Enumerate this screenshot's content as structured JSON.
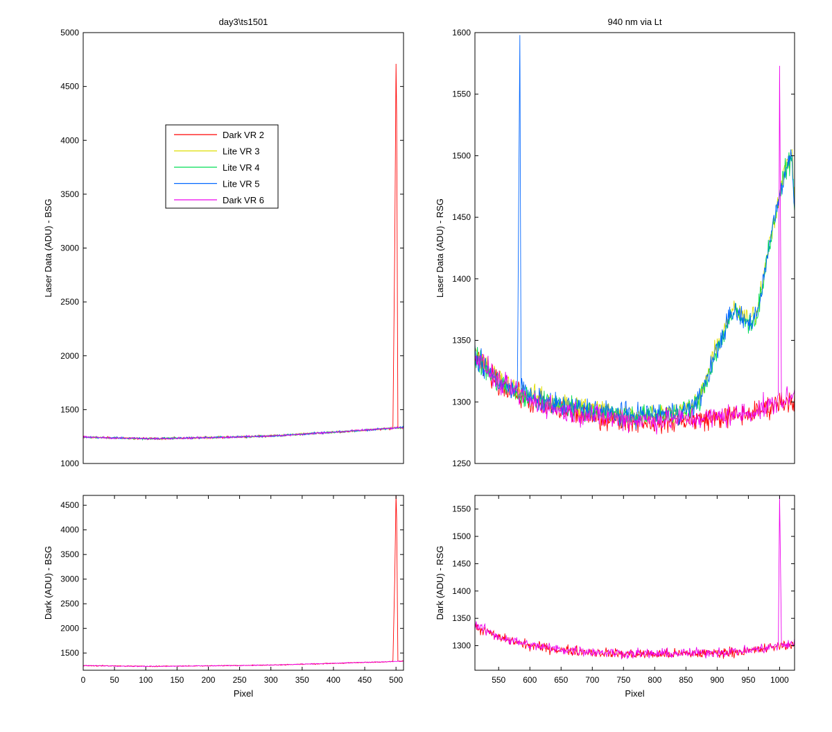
{
  "figure": {
    "background": "#ffffff",
    "panels": [
      {
        "id": "top-left",
        "title": "day3\\ts1501",
        "xlabel": "",
        "ylabel": "Laser Data (ADU) - BSG",
        "xlim": [
          0,
          512
        ],
        "ylim": [
          1000,
          5000
        ],
        "xticks": [],
        "yticks": [
          1000,
          1500,
          2000,
          2500,
          3000,
          3500,
          4000,
          4500,
          5000
        ]
      },
      {
        "id": "top-right",
        "title": "940 nm via Lt",
        "xlabel": "",
        "ylabel": "Laser Data (ADU) - RSG",
        "xlim": [
          512,
          1024
        ],
        "ylim": [
          1250,
          1600
        ],
        "xticks": [],
        "yticks": [
          1250,
          1300,
          1350,
          1400,
          1450,
          1500,
          1550,
          1600
        ]
      },
      {
        "id": "bottom-left",
        "title": "",
        "xlabel": "Pixel",
        "ylabel": "Dark (ADU) - BSG",
        "xlim": [
          0,
          512
        ],
        "ylim": [
          1150,
          4700
        ],
        "xticks": [
          0,
          50,
          100,
          150,
          200,
          250,
          300,
          350,
          400,
          450,
          500
        ],
        "yticks": [
          1500,
          2000,
          2500,
          3000,
          3500,
          4000,
          4500
        ]
      },
      {
        "id": "bottom-right",
        "title": "",
        "xlabel": "Pixel",
        "ylabel": "Dark (ADU) - RSG",
        "xlim": [
          512,
          1024
        ],
        "ylim": [
          1255,
          1575
        ],
        "xticks": [
          550,
          600,
          650,
          700,
          750,
          800,
          850,
          900,
          950,
          1000
        ],
        "yticks": [
          1300,
          1350,
          1400,
          1450,
          1500,
          1550
        ]
      }
    ],
    "legend": {
      "placement": "upper-left-inset",
      "entries": [
        {
          "label": "Dark VR 2",
          "color": "#ff0000"
        },
        {
          "label": "Lite VR 3",
          "color": "#dddd00"
        },
        {
          "label": "Lite VR 4",
          "color": "#00dd55"
        },
        {
          "label": "Lite VR 5",
          "color": "#0066ff"
        },
        {
          "label": "Dark VR 6",
          "color": "#ee00ee"
        }
      ]
    }
  },
  "chart_data": [
    {
      "type": "line",
      "title": "day3\\ts1501",
      "ylabel": "Laser Data (ADU) - BSG",
      "xlim": [
        0,
        512
      ],
      "ylim": [
        1000,
        5000
      ],
      "series": [
        {
          "name": "Dark VR 2",
          "color": "#ff0000",
          "x": [
            0,
            100,
            200,
            300,
            400,
            495,
            498,
            500,
            501,
            503,
            512
          ],
          "y": [
            1245,
            1230,
            1240,
            1255,
            1290,
            1325,
            3050,
            4710,
            4230,
            1330,
            1335
          ]
        },
        {
          "name": "Lite VR 3",
          "color": "#dddd00",
          "x": [
            0,
            100,
            200,
            300,
            400,
            512
          ],
          "y": [
            1245,
            1230,
            1240,
            1255,
            1290,
            1335
          ]
        },
        {
          "name": "Lite VR 4",
          "color": "#00dd55",
          "x": [
            0,
            100,
            200,
            300,
            400,
            512
          ],
          "y": [
            1245,
            1230,
            1240,
            1255,
            1290,
            1335
          ]
        },
        {
          "name": "Lite VR 5",
          "color": "#0066ff",
          "x": [
            0,
            100,
            200,
            300,
            400,
            512
          ],
          "y": [
            1245,
            1230,
            1240,
            1255,
            1290,
            1335
          ]
        },
        {
          "name": "Dark VR 6",
          "color": "#ee00ee",
          "x": [
            0,
            100,
            200,
            300,
            400,
            512
          ],
          "y": [
            1245,
            1230,
            1240,
            1255,
            1290,
            1335
          ]
        }
      ]
    },
    {
      "type": "line",
      "title": "940 nm via Lt",
      "ylabel": "Laser Data (ADU) - RSG",
      "xlim": [
        512,
        1024
      ],
      "ylim": [
        1250,
        1600
      ],
      "series": [
        {
          "name": "Dark VR 2",
          "color": "#ff0000",
          "x": [
            512,
            550,
            600,
            650,
            700,
            750,
            800,
            850,
            900,
            950,
            980,
            1000,
            1024
          ],
          "y": [
            1335,
            1315,
            1300,
            1292,
            1288,
            1285,
            1284,
            1285,
            1287,
            1290,
            1295,
            1300,
            1302
          ]
        },
        {
          "name": "Lite VR 3",
          "color": "#dddd00",
          "x": [
            512,
            550,
            600,
            650,
            700,
            750,
            800,
            850,
            870,
            900,
            920,
            930,
            950,
            965,
            980,
            1000,
            1010,
            1020,
            1024
          ],
          "y": [
            1340,
            1318,
            1305,
            1298,
            1295,
            1290,
            1290,
            1293,
            1300,
            1345,
            1370,
            1375,
            1365,
            1375,
            1420,
            1470,
            1490,
            1505,
            1460
          ]
        },
        {
          "name": "Lite VR 4",
          "color": "#00dd55",
          "x": [
            512,
            550,
            600,
            650,
            700,
            750,
            800,
            850,
            870,
            900,
            920,
            930,
            950,
            965,
            980,
            1000,
            1010,
            1020,
            1024
          ],
          "y": [
            1335,
            1315,
            1302,
            1297,
            1293,
            1289,
            1289,
            1292,
            1300,
            1342,
            1368,
            1372,
            1362,
            1372,
            1418,
            1468,
            1488,
            1500,
            1455
          ]
        },
        {
          "name": "Lite VR 5",
          "color": "#0066ff",
          "x": [
            512,
            550,
            580,
            582,
            584,
            586,
            600,
            650,
            700,
            750,
            800,
            850,
            870,
            900,
            920,
            930,
            950,
            965,
            980,
            1000,
            1010,
            1020,
            1024
          ],
          "y": [
            1337,
            1316,
            1310,
            1455,
            1598,
            1312,
            1303,
            1297,
            1294,
            1290,
            1290,
            1293,
            1300,
            1343,
            1369,
            1373,
            1363,
            1373,
            1419,
            1469,
            1490,
            1500,
            1458
          ]
        },
        {
          "name": "Dark VR 6",
          "color": "#ee00ee",
          "x": [
            512,
            550,
            600,
            650,
            700,
            750,
            800,
            850,
            900,
            950,
            980,
            998,
            1000,
            1001,
            1003,
            1024
          ],
          "y": [
            1338,
            1316,
            1301,
            1293,
            1289,
            1286,
            1285,
            1286,
            1288,
            1291,
            1296,
            1300,
            1573,
            1490,
            1300,
            1305
          ]
        }
      ]
    },
    {
      "type": "line",
      "xlabel": "Pixel",
      "ylabel": "Dark (ADU) - BSG",
      "xlim": [
        0,
        512
      ],
      "ylim": [
        1150,
        4700
      ],
      "series": [
        {
          "name": "Dark VR 2",
          "color": "#ff0000",
          "x": [
            0,
            100,
            200,
            300,
            400,
            495,
            498,
            500,
            501,
            503,
            512
          ],
          "y": [
            1245,
            1230,
            1240,
            1255,
            1290,
            1325,
            3050,
            4710,
            4230,
            1330,
            1335
          ]
        },
        {
          "name": "Dark VR 6",
          "color": "#ee00ee",
          "x": [
            0,
            100,
            200,
            300,
            400,
            512
          ],
          "y": [
            1245,
            1230,
            1240,
            1255,
            1290,
            1335
          ]
        }
      ]
    },
    {
      "type": "line",
      "xlabel": "Pixel",
      "ylabel": "Dark (ADU) - RSG",
      "xlim": [
        512,
        1024
      ],
      "ylim": [
        1255,
        1575
      ],
      "series": [
        {
          "name": "Dark VR 2",
          "color": "#ff0000",
          "x": [
            512,
            550,
            600,
            650,
            700,
            750,
            800,
            850,
            900,
            950,
            980,
            1000,
            1024
          ],
          "y": [
            1335,
            1315,
            1300,
            1292,
            1288,
            1285,
            1284,
            1285,
            1287,
            1290,
            1295,
            1300,
            1302
          ]
        },
        {
          "name": "Dark VR 6",
          "color": "#ee00ee",
          "x": [
            512,
            550,
            600,
            650,
            700,
            750,
            800,
            850,
            900,
            950,
            980,
            998,
            1000,
            1001,
            1003,
            1024
          ],
          "y": [
            1338,
            1316,
            1301,
            1293,
            1289,
            1286,
            1285,
            1286,
            1288,
            1291,
            1296,
            1300,
            1573,
            1490,
            1300,
            1305
          ]
        }
      ]
    }
  ]
}
